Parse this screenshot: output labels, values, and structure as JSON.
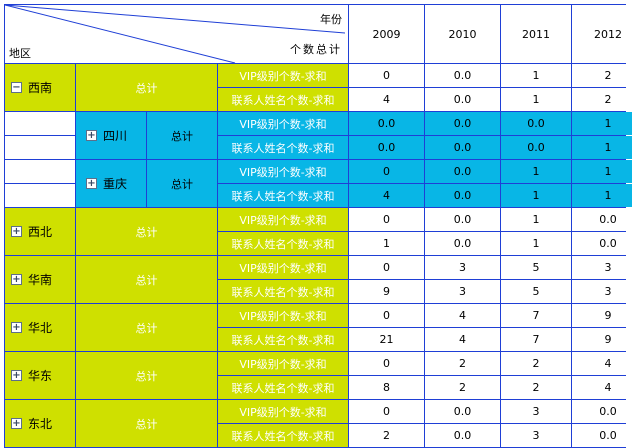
{
  "header": {
    "corner_top": "年份",
    "corner_mid": "个数总计",
    "corner_left": "地区",
    "years": [
      "2009",
      "2010",
      "2011",
      "2012"
    ]
  },
  "labels": {
    "total": "总计",
    "metric1": "VIP级别个数-求和",
    "metric2": "联系人姓名个数-求和"
  },
  "icons": {
    "expanded": "minus-box-icon",
    "collapsed": "plus-box-icon"
  },
  "colors": {
    "yellow": "#cfe000",
    "cyan": "#08b6e6",
    "border": "#1f3fd6"
  },
  "regions": [
    {
      "name": "西南",
      "expanded": true,
      "vip": [
        "0",
        "0.0",
        "1",
        "2"
      ],
      "contact": [
        "4",
        "0.0",
        "1",
        "2"
      ],
      "subregions": [
        {
          "name": "四川",
          "vip": [
            "0.0",
            "0.0",
            "0.0",
            "1"
          ],
          "contact": [
            "0.0",
            "0.0",
            "0.0",
            "1"
          ]
        },
        {
          "name": "重庆",
          "vip": [
            "0",
            "0.0",
            "1",
            "1"
          ],
          "contact": [
            "4",
            "0.0",
            "1",
            "1"
          ]
        }
      ]
    },
    {
      "name": "西北",
      "expanded": false,
      "vip": [
        "0",
        "0.0",
        "1",
        "0.0"
      ],
      "contact": [
        "1",
        "0.0",
        "1",
        "0.0"
      ]
    },
    {
      "name": "华南",
      "expanded": false,
      "vip": [
        "0",
        "3",
        "5",
        "3"
      ],
      "contact": [
        "9",
        "3",
        "5",
        "3"
      ]
    },
    {
      "name": "华北",
      "expanded": false,
      "vip": [
        "0",
        "4",
        "7",
        "9"
      ],
      "contact": [
        "21",
        "4",
        "7",
        "9"
      ]
    },
    {
      "name": "华东",
      "expanded": false,
      "vip": [
        "0",
        "2",
        "2",
        "4"
      ],
      "contact": [
        "8",
        "2",
        "2",
        "4"
      ]
    },
    {
      "name": "东北",
      "expanded": false,
      "vip": [
        "0",
        "0.0",
        "3",
        "0.0"
      ],
      "contact": [
        "2",
        "0.0",
        "3",
        "0.0"
      ]
    }
  ]
}
